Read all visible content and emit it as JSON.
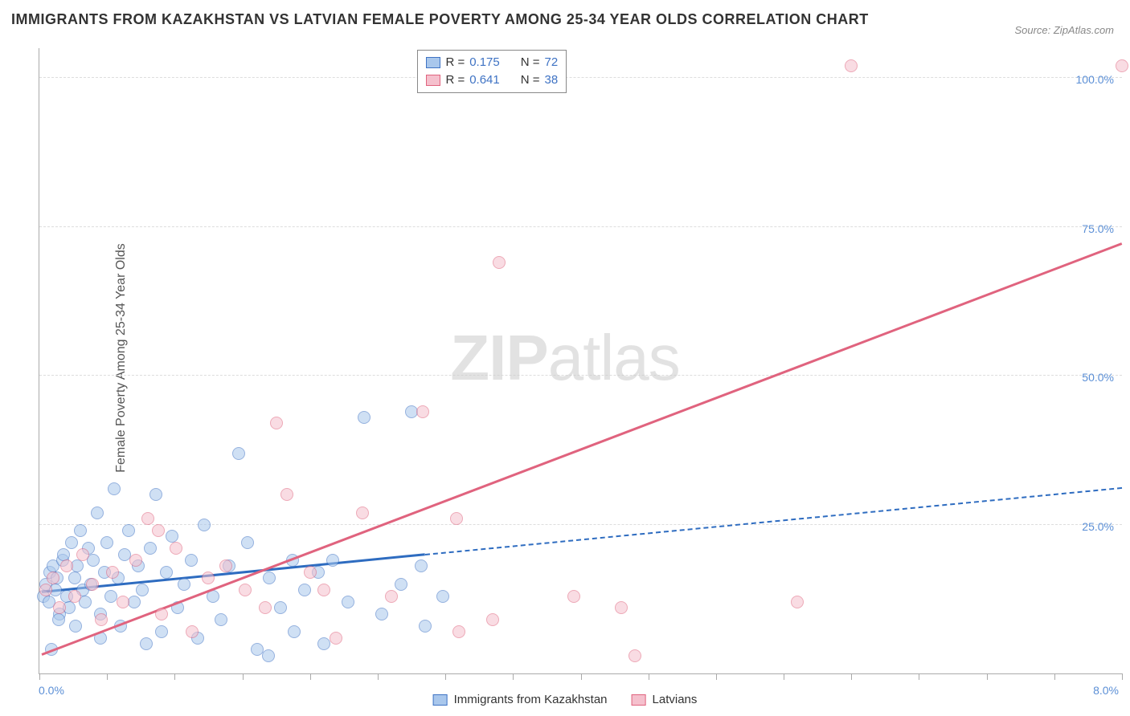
{
  "title": "IMMIGRANTS FROM KAZAKHSTAN VS LATVIAN FEMALE POVERTY AMONG 25-34 YEAR OLDS CORRELATION CHART",
  "source": "Source: ZipAtlas.com",
  "y_axis_label": "Female Poverty Among 25-34 Year Olds",
  "watermark_bold": "ZIP",
  "watermark_light": "atlas",
  "chart": {
    "type": "scatter",
    "xlim": [
      0,
      8
    ],
    "ylim": [
      0,
      105
    ],
    "x_left_label": "0.0%",
    "x_right_label": "8.0%",
    "x_tick_positions": [
      0,
      0.5,
      1,
      1.5,
      2,
      2.5,
      3,
      3.5,
      4,
      4.5,
      5,
      5.5,
      6,
      6.5,
      7,
      7.5,
      8
    ],
    "y_ticks": [
      {
        "value": 25,
        "label": "25.0%"
      },
      {
        "value": 50,
        "label": "50.0%"
      },
      {
        "value": 75,
        "label": "75.0%"
      },
      {
        "value": 100,
        "label": "100.0%"
      }
    ],
    "background_color": "#ffffff",
    "grid_color": "#dddddd",
    "point_radius": 8,
    "point_opacity": 0.55,
    "series": [
      {
        "name": "Immigrants from Kazakhstan",
        "color_fill": "#a9c7ec",
        "color_stroke": "#3f73c4",
        "r_label": "R =",
        "r_value": "0.175",
        "n_label": "N =",
        "n_value": "72",
        "trend": {
          "x1": 0.02,
          "y1": 13.5,
          "x2": 2.85,
          "y2": 19.8,
          "stroke": "#2e6cc0",
          "width": 3,
          "dash": false
        },
        "trend_ext": {
          "x1": 2.85,
          "y1": 19.8,
          "x2": 8.0,
          "y2": 31.0,
          "stroke": "#2e6cc0",
          "width": 2,
          "dash": true
        },
        "points": [
          [
            0.03,
            13
          ],
          [
            0.05,
            15
          ],
          [
            0.07,
            12
          ],
          [
            0.08,
            17
          ],
          [
            0.1,
            18
          ],
          [
            0.12,
            14
          ],
          [
            0.13,
            16
          ],
          [
            0.15,
            10
          ],
          [
            0.17,
            19
          ],
          [
            0.18,
            20
          ],
          [
            0.2,
            13
          ],
          [
            0.22,
            11
          ],
          [
            0.24,
            22
          ],
          [
            0.26,
            16
          ],
          [
            0.28,
            18
          ],
          [
            0.3,
            24
          ],
          [
            0.32,
            14
          ],
          [
            0.34,
            12
          ],
          [
            0.36,
            21
          ],
          [
            0.38,
            15
          ],
          [
            0.4,
            19
          ],
          [
            0.43,
            27
          ],
          [
            0.45,
            10
          ],
          [
            0.48,
            17
          ],
          [
            0.5,
            22
          ],
          [
            0.53,
            13
          ],
          [
            0.55,
            31
          ],
          [
            0.58,
            16
          ],
          [
            0.6,
            8
          ],
          [
            0.63,
            20
          ],
          [
            0.66,
            24
          ],
          [
            0.7,
            12
          ],
          [
            0.73,
            18
          ],
          [
            0.76,
            14
          ],
          [
            0.79,
            5
          ],
          [
            0.82,
            21
          ],
          [
            0.86,
            30
          ],
          [
            0.9,
            7
          ],
          [
            0.94,
            17
          ],
          [
            0.98,
            23
          ],
          [
            1.02,
            11
          ],
          [
            1.07,
            15
          ],
          [
            1.12,
            19
          ],
          [
            1.17,
            6
          ],
          [
            1.22,
            25
          ],
          [
            1.28,
            13
          ],
          [
            1.34,
            9
          ],
          [
            1.4,
            18
          ],
          [
            1.47,
            37
          ],
          [
            1.54,
            22
          ],
          [
            1.61,
            4
          ],
          [
            1.69,
            3
          ],
          [
            1.7,
            16
          ],
          [
            1.78,
            11
          ],
          [
            1.87,
            19
          ],
          [
            1.88,
            7
          ],
          [
            1.96,
            14
          ],
          [
            2.06,
            17
          ],
          [
            2.1,
            5
          ],
          [
            2.17,
            19
          ],
          [
            2.28,
            12
          ],
          [
            2.4,
            43
          ],
          [
            2.53,
            10
          ],
          [
            2.67,
            15
          ],
          [
            2.75,
            44
          ],
          [
            2.82,
            18
          ],
          [
            2.85,
            8
          ],
          [
            2.98,
            13
          ],
          [
            0.14,
            9
          ],
          [
            0.45,
            6
          ],
          [
            0.27,
            8
          ],
          [
            0.09,
            4
          ]
        ]
      },
      {
        "name": "Latvians",
        "color_fill": "#f5c0cd",
        "color_stroke": "#e0637e",
        "r_label": "R =",
        "r_value": "0.641",
        "n_label": "N =",
        "n_value": "38",
        "trend": {
          "x1": 0.02,
          "y1": 3,
          "x2": 8.0,
          "y2": 72,
          "stroke": "#e0637e",
          "width": 3,
          "dash": false
        },
        "points": [
          [
            0.05,
            14
          ],
          [
            0.1,
            16
          ],
          [
            0.15,
            11
          ],
          [
            0.2,
            18
          ],
          [
            0.26,
            13
          ],
          [
            0.32,
            20
          ],
          [
            0.39,
            15
          ],
          [
            0.46,
            9
          ],
          [
            0.54,
            17
          ],
          [
            0.62,
            12
          ],
          [
            0.71,
            19
          ],
          [
            0.8,
            26
          ],
          [
            0.88,
            24
          ],
          [
            0.9,
            10
          ],
          [
            1.01,
            21
          ],
          [
            1.13,
            7
          ],
          [
            1.25,
            16
          ],
          [
            1.38,
            18
          ],
          [
            1.52,
            14
          ],
          [
            1.67,
            11
          ],
          [
            1.75,
            42
          ],
          [
            1.83,
            30
          ],
          [
            2.0,
            17
          ],
          [
            2.1,
            14
          ],
          [
            2.19,
            6
          ],
          [
            2.39,
            27
          ],
          [
            2.6,
            13
          ],
          [
            2.83,
            44
          ],
          [
            3.08,
            26
          ],
          [
            3.1,
            7
          ],
          [
            3.35,
            9
          ],
          [
            3.4,
            69
          ],
          [
            3.95,
            13
          ],
          [
            4.3,
            11
          ],
          [
            4.4,
            3
          ],
          [
            5.6,
            12
          ],
          [
            6.0,
            102
          ],
          [
            8.0,
            102
          ]
        ]
      }
    ]
  },
  "legend_bottom": {
    "series1_label": "Immigrants from Kazakhstan",
    "series2_label": "Latvians"
  }
}
